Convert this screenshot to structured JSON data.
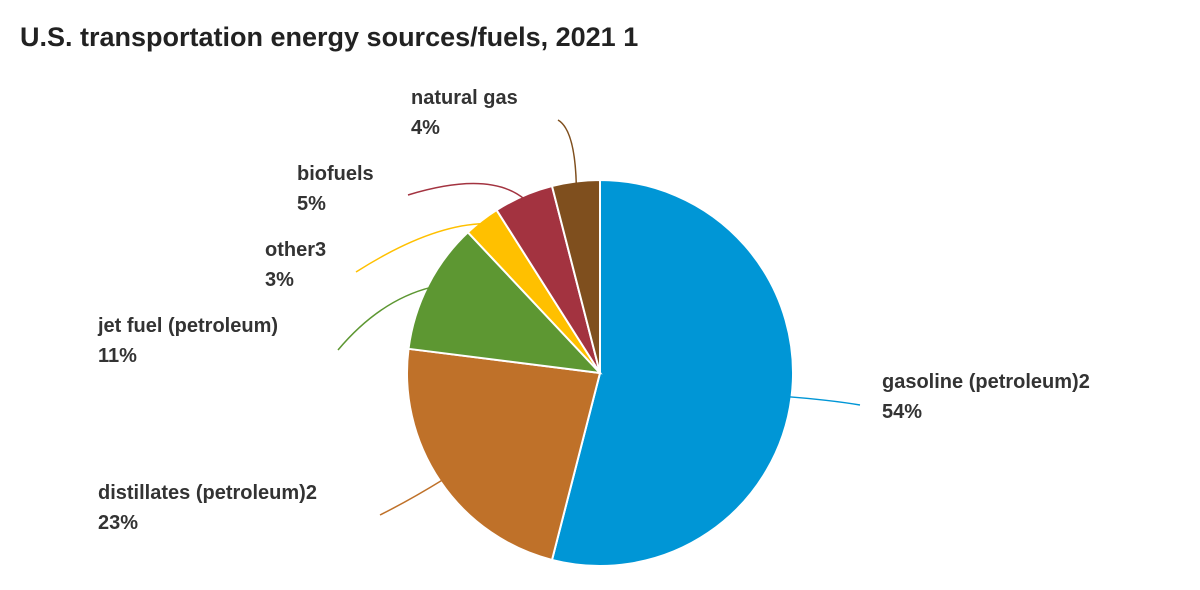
{
  "chart_data": {
    "type": "pie",
    "title": "U.S. transportation energy sources/fuels, 2021 1",
    "categories": [
      "gasoline (petroleum)2",
      "distillates (petroleum)2",
      "jet fuel (petroleum)",
      "other3",
      "biofuels",
      "natural gas"
    ],
    "values": [
      54,
      23,
      11,
      3,
      5,
      4
    ],
    "value_labels": [
      "54%",
      "23%",
      "11%",
      "3%",
      "5%",
      "4%"
    ],
    "colors": [
      "#0096d6",
      "#bf7129",
      "#5d9732",
      "#ffc000",
      "#a33340",
      "#7f4f1e"
    ]
  }
}
